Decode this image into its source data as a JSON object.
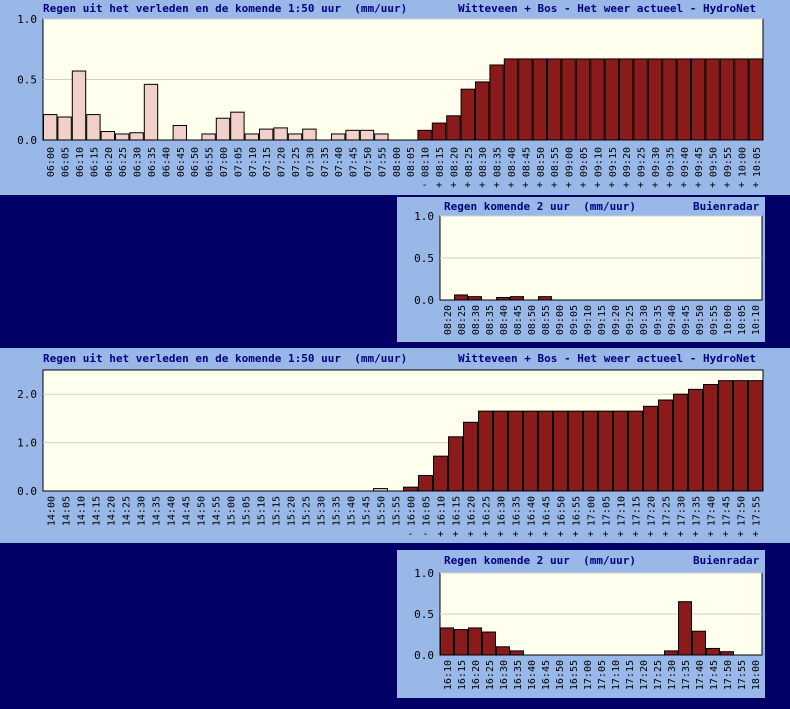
{
  "colors": {
    "page_bg": "#000066",
    "panel_bg": "#99b8e8",
    "plot_bg": "#ffffee",
    "past_bar": "#f0d0c8",
    "future_bar": "#8b1a1a",
    "grid": "#cfcfcf",
    "text": "#000080"
  },
  "panels": [
    {
      "title_left": "Regen uit het verleden en de komende 1:50 uur  (mm/uur)",
      "title_right": "Witteveen + Bos - Het weer actueel - HydroNet",
      "chart_data": {
        "type": "bar",
        "categories": [
          "06:00",
          "06:05",
          "06:10",
          "06:15",
          "06:20",
          "06:25",
          "06:30",
          "06:35",
          "06:40",
          "06:45",
          "06:50",
          "06:55",
          "07:00",
          "07:05",
          "07:10",
          "07:15",
          "07:20",
          "07:25",
          "07:30",
          "07:35",
          "07:40",
          "07:45",
          "07:50",
          "07:55",
          "08:00",
          "08:05",
          "08:10",
          "08:15",
          "08:20",
          "08:25",
          "08:30",
          "08:35",
          "08:40",
          "08:45",
          "08:50",
          "08:55",
          "09:00",
          "09:05",
          "09:10",
          "09:15",
          "09:20",
          "09:25",
          "09:30",
          "09:35",
          "09:40",
          "09:45",
          "09:50",
          "09:55",
          "10:00",
          "10:05"
        ],
        "values": [
          0.21,
          0.19,
          0.57,
          0.21,
          0.07,
          0.05,
          0.06,
          0.46,
          0.0,
          0.12,
          0.0,
          0.05,
          0.18,
          0.23,
          0.05,
          0.09,
          0.1,
          0.05,
          0.09,
          0.0,
          0.05,
          0.08,
          0.08,
          0.05,
          0.0,
          0.0,
          0.08,
          0.14,
          0.2,
          0.42,
          0.48,
          0.62,
          0.67,
          0.67,
          0.67,
          0.67,
          0.67,
          0.67,
          0.67,
          0.67,
          0.67,
          0.67,
          0.67,
          0.67,
          0.67,
          0.67,
          0.67,
          0.67,
          0.67,
          0.67
        ],
        "future_from": 26,
        "marks": [
          "-",
          "+",
          "+",
          "+",
          "+",
          "+",
          "+",
          "+",
          "+",
          "+",
          "+",
          "+",
          "+",
          "+",
          "+",
          "+",
          "+",
          "+",
          "+",
          "+",
          "+",
          "+",
          "+",
          "+"
        ],
        "yticks": [
          "0.0",
          "0.5",
          "1.0"
        ],
        "ylim": [
          0,
          1.0
        ],
        "grid": true
      }
    },
    {
      "title_left": "Regen komende 2 uur  (mm/uur)",
      "title_right": "Buienradar",
      "chart_data": {
        "type": "bar",
        "categories": [
          "08:20",
          "08:25",
          "08:30",
          "08:35",
          "08:40",
          "08:45",
          "08:50",
          "08:55",
          "09:00",
          "09:05",
          "09:10",
          "09:15",
          "09:20",
          "09:25",
          "09:30",
          "09:35",
          "09:40",
          "09:45",
          "09:50",
          "09:55",
          "10:00",
          "10:05",
          "10:10"
        ],
        "values": [
          0.0,
          0.06,
          0.04,
          0.0,
          0.03,
          0.04,
          0.0,
          0.04,
          0.0,
          0.0,
          0.0,
          0.0,
          0.0,
          0.0,
          0.0,
          0.0,
          0.0,
          0.0,
          0.0,
          0.0,
          0.0,
          0.0,
          0.0
        ],
        "yticks": [
          "0.0",
          "0.5",
          "1.0"
        ],
        "ylim": [
          0,
          1.0
        ],
        "grid": true
      }
    },
    {
      "title_left": "Regen uit het verleden en de komende 1:50 uur  (mm/uur)",
      "title_right": "Witteveen + Bos - Het weer actueel - HydroNet",
      "chart_data": {
        "type": "bar",
        "categories": [
          "14:00",
          "14:05",
          "14:10",
          "14:15",
          "14:20",
          "14:25",
          "14:30",
          "14:35",
          "14:40",
          "14:45",
          "14:50",
          "14:55",
          "15:00",
          "15:05",
          "15:10",
          "15:15",
          "15:20",
          "15:25",
          "15:30",
          "15:35",
          "15:40",
          "15:45",
          "15:50",
          "15:55",
          "16:00",
          "16:05",
          "16:10",
          "16:15",
          "16:20",
          "16:25",
          "16:30",
          "16:35",
          "16:40",
          "16:45",
          "16:50",
          "16:55",
          "17:00",
          "17:05",
          "17:10",
          "17:15",
          "17:20",
          "17:25",
          "17:30",
          "17:35",
          "17:40",
          "17:45",
          "17:50",
          "17:55"
        ],
        "values": [
          0,
          0,
          0,
          0,
          0,
          0,
          0,
          0,
          0,
          0,
          0,
          0,
          0,
          0,
          0,
          0,
          0,
          0,
          0,
          0,
          0,
          0,
          0.05,
          0.0,
          0.08,
          0.32,
          0.72,
          1.12,
          1.42,
          1.65,
          1.65,
          1.65,
          1.65,
          1.65,
          1.65,
          1.65,
          1.65,
          1.65,
          1.65,
          1.65,
          1.75,
          1.88,
          2.0,
          2.1,
          2.2,
          2.28,
          2.28,
          2.28
        ],
        "future_from": 24,
        "marks": [
          "-",
          "-",
          "+",
          "+",
          "+",
          "+",
          "+",
          "+",
          "+",
          "+",
          "+",
          "+",
          "+",
          "+",
          "+",
          "+",
          "+",
          "+",
          "+",
          "+",
          "+",
          "+",
          "+",
          "+"
        ],
        "yticks": [
          "0.0",
          "1.0",
          "2.0"
        ],
        "ylim": [
          0,
          2.5
        ],
        "grid": true
      }
    },
    {
      "title_left": "Regen komende 2 uur  (mm/uur)",
      "title_right": "Buienradar",
      "chart_data": {
        "type": "bar",
        "categories": [
          "16:10",
          "16:15",
          "16:20",
          "16:25",
          "16:30",
          "16:35",
          "16:40",
          "16:45",
          "16:50",
          "16:55",
          "17:00",
          "17:05",
          "17:10",
          "17:15",
          "17:20",
          "17:25",
          "17:30",
          "17:35",
          "17:40",
          "17:45",
          "17:50",
          "17:55",
          "18:00"
        ],
        "values": [
          0.33,
          0.31,
          0.33,
          0.28,
          0.1,
          0.05,
          0,
          0,
          0,
          0,
          0,
          0,
          0,
          0,
          0,
          0,
          0.05,
          0.65,
          0.29,
          0.08,
          0.04,
          0.0,
          0.0
        ],
        "yticks": [
          "0.0",
          "0.5",
          "1.0"
        ],
        "ylim": [
          0,
          1.0
        ],
        "grid": true
      }
    }
  ]
}
